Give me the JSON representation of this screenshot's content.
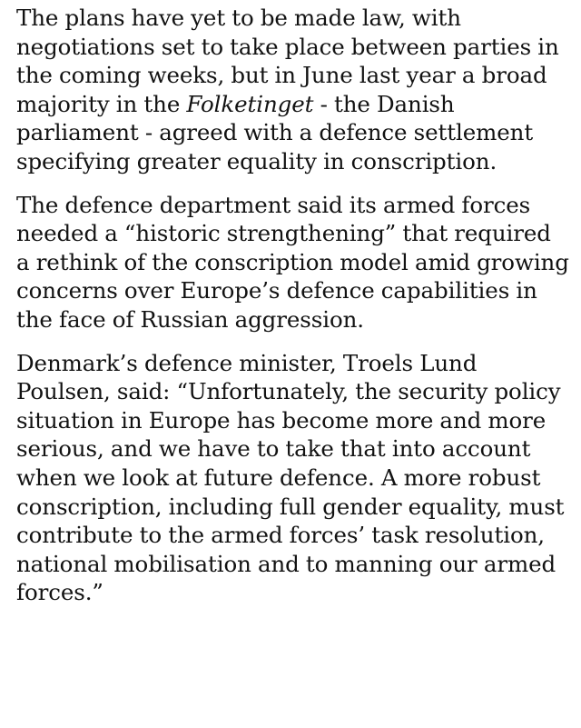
{
  "paragraphs": [
    {
      "before": "The plans have yet to be made law, with negotiations set to take place between parties in the coming weeks, but in June last year a broad majority in the ",
      "emphasis": "Folketinget",
      "after": " - the Danish parliament - agreed with a defence settlement specifying greater equality in conscription."
    },
    {
      "text": "The defence department said its armed forces needed a “historic strengthening” that required a rethink of the conscription model amid growing concerns over Europe’s defence capabilities in the face of Russian aggression."
    },
    {
      "text": "Denmark’s defence minister, Troels Lund Poulsen, said: “Unfortunately, the security policy situation in Europe has become more and more serious, and we have to take that into account when we look at future defence. A more robust conscription, including full gender equality, must contribute to the armed forces’ task resolution, national mobilisation and to manning our armed forces.”"
    }
  ]
}
